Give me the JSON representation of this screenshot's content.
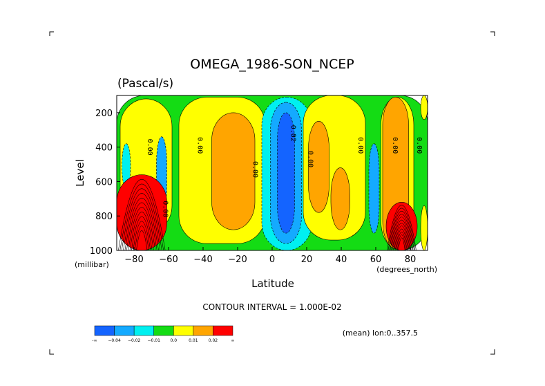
{
  "chart_data": {
    "type": "heatmap",
    "title": "OMEGA_1986-SON_NCEP",
    "units": "(Pascal/s)",
    "xlabel": "Latitude",
    "xunits": "(degrees_north)",
    "ylabel": "Level",
    "yunits": "(millibar)",
    "xlim": [
      -90,
      90
    ],
    "ylim": [
      1000,
      100
    ],
    "x_ticks": [
      -80,
      -60,
      -40,
      -20,
      0,
      20,
      40,
      60,
      80
    ],
    "x_tick_labels": [
      "−80",
      "−60",
      "−40",
      "−20",
      "0",
      "20",
      "40",
      "60",
      "80"
    ],
    "y_ticks": [
      200,
      400,
      600,
      800,
      1000
    ],
    "y_tick_labels": [
      "200",
      "400",
      "600",
      "800",
      "1000"
    ],
    "contour_interval_text": "CONTOUR INTERVAL = 1.000E-02",
    "mean_text": "(mean) lon:0..357.5",
    "contour_labels": [
      {
        "text": "0.00",
        "x": -72,
        "y": 400
      },
      {
        "text": "0.00",
        "x": -43,
        "y": 390
      },
      {
        "text": "0.00",
        "x": -63,
        "y": 760
      },
      {
        "text": "0.00",
        "x": -11,
        "y": 530
      },
      {
        "text": "0.02",
        "x": 11,
        "y": 320
      },
      {
        "text": "0.00",
        "x": 21,
        "y": 470
      },
      {
        "text": "0.00",
        "x": 50,
        "y": 390
      },
      {
        "text": "0.00",
        "x": 70,
        "y": 390
      },
      {
        "text": "0.00",
        "x": 84,
        "y": 390
      }
    ],
    "regions": [
      {
        "band": 0.0,
        "xl": -90,
        "xr": 90,
        "yt": 100,
        "yb": 1000
      },
      {
        "band": 0.01,
        "xl": -88,
        "xr": -58,
        "yt": 120,
        "yb": 900
      },
      {
        "band": -0.01,
        "xl": -87,
        "xr": -82,
        "yt": 380,
        "yb": 640
      },
      {
        "band": -0.02,
        "xl": -67,
        "xr": -61,
        "yt": 340,
        "yb": 780
      },
      {
        "band": 0.01,
        "xl": -54,
        "xr": -4,
        "yt": 110,
        "yb": 960
      },
      {
        "band": 0.02,
        "xl": -35,
        "xr": -10,
        "yt": 200,
        "yb": 880
      },
      {
        "band": -0.01,
        "xl": -6,
        "xr": 23,
        "yt": 110,
        "yb": 1000
      },
      {
        "band": -0.02,
        "xl": -1,
        "xr": 17,
        "yt": 140,
        "yb": 960
      },
      {
        "band": -0.04,
        "xl": 3,
        "xr": 13,
        "yt": 200,
        "yb": 900
      },
      {
        "band": 0.01,
        "xl": 18,
        "xr": 54,
        "yt": 100,
        "yb": 940
      },
      {
        "band": 0.02,
        "xl": 21,
        "xr": 33,
        "yt": 250,
        "yb": 780
      },
      {
        "band": 0.02,
        "xl": 34,
        "xr": 45,
        "yt": 520,
        "yb": 880
      },
      {
        "band": -0.02,
        "xl": 56,
        "xr": 62,
        "yt": 380,
        "yb": 900
      },
      {
        "band": 0.01,
        "xl": 63,
        "xr": 82,
        "yt": 110,
        "yb": 990
      },
      {
        "band": 0.02,
        "xl": 64,
        "xr": 79,
        "yt": 110,
        "yb": 990
      },
      {
        "band": 0.01,
        "xl": 86,
        "xr": 90,
        "yt": 100,
        "yb": 240
      },
      {
        "band": 0.01,
        "xl": 86,
        "xr": 90,
        "yt": 740,
        "yb": 1000
      },
      {
        "band": 0.03,
        "xl": -90,
        "xr": -61,
        "yt": 560,
        "yb": 1000
      },
      {
        "band": 0.03,
        "xl": 66,
        "xr": 84,
        "yt": 720,
        "yb": 1000
      }
    ]
  },
  "colorbar": {
    "bands": [
      {
        "color": "#1464ff",
        "label": "-∞"
      },
      {
        "color": "#14aaff",
        "label": "−0.04"
      },
      {
        "color": "#00f0f0",
        "label": "−0.02"
      },
      {
        "color": "#14dc14",
        "label": "−0.01"
      },
      {
        "color": "#ffff00",
        "label": "0.0"
      },
      {
        "color": "#ffa500",
        "label": "0.01"
      },
      {
        "color": "#ff0000",
        "label": "0.02"
      }
    ],
    "end_label": "∞"
  },
  "band_colors": {
    "-0.04": "#1464ff",
    "-0.02": "#14aaff",
    "-0.01": "#00f0f0",
    "0": "#14dc14",
    "0.01": "#ffff00",
    "0.02": "#ffa500",
    "0.03": "#ff0000"
  }
}
